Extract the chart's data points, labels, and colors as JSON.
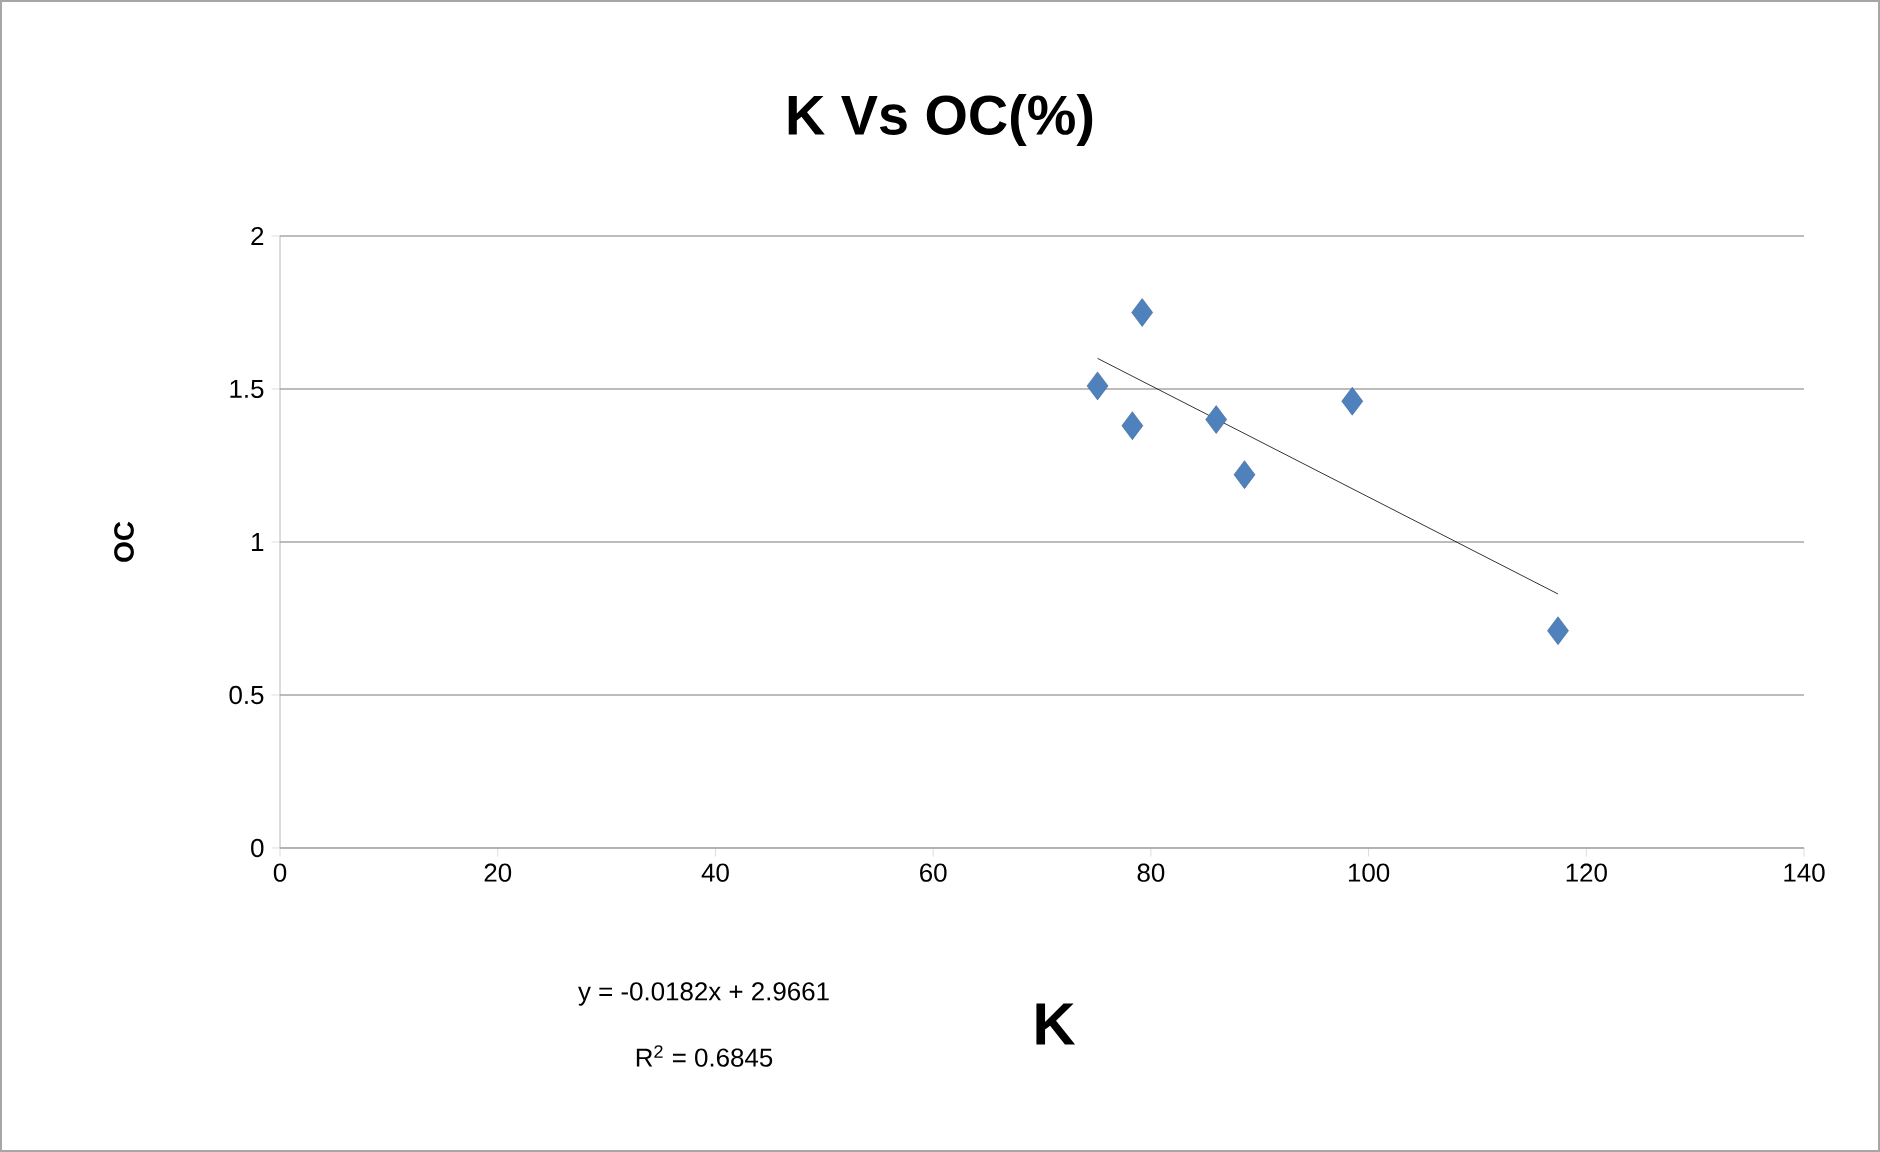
{
  "chart_data": {
    "type": "scatter",
    "title": "K  Vs  OC(%)",
    "xlabel": "K",
    "ylabel": "OC",
    "series": [
      {
        "color": "#4f81bd",
        "marker": "diamond",
        "x": [
          75.1,
          79.2,
          78.3,
          86.0,
          88.6,
          98.5,
          117.4
        ],
        "values": [
          1.51,
          1.75,
          1.38,
          1.4,
          1.22,
          1.46,
          0.71
        ]
      },
      {
        "type": "line",
        "color": "#000000",
        "marker": "none",
        "x": [
          75.1,
          117.4
        ],
        "values": [
          1.6,
          0.83
        ]
      }
    ],
    "xlim": [
      0,
      140
    ],
    "ylim": [
      0,
      2
    ],
    "xticks": [
      0,
      20,
      40,
      60,
      80,
      100,
      120,
      140
    ],
    "yticks": [
      0,
      0.5,
      1,
      1.5,
      2
    ],
    "grid": "y",
    "annotations": [
      "y = -0.0182x + 2.9661",
      "R$^{2}$ = 0.6845"
    ]
  }
}
